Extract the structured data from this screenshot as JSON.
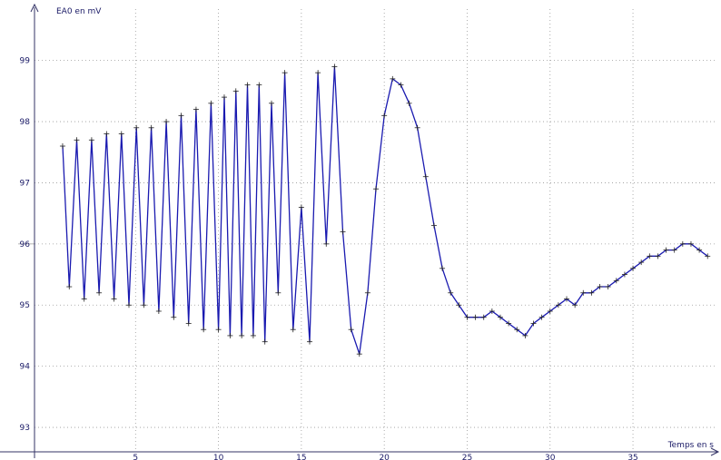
{
  "chart_data": {
    "type": "line",
    "title": "",
    "ylabel": "EA0 en mV",
    "xlabel": "Temps en s",
    "xlim": [
      0,
      40.2
    ],
    "ylim": [
      92.6,
      99.9
    ],
    "x_ticks": [
      5,
      10,
      15,
      20,
      25,
      30,
      35
    ],
    "y_ticks": [
      93,
      94,
      95,
      96,
      97,
      98,
      99
    ],
    "grid": true,
    "legend": "none",
    "colors": {
      "line": "#1a1ab0",
      "marker": "#222222",
      "grid": "#9a9a9a",
      "axis": "#333366",
      "text": "#1a1a66"
    },
    "series": [
      {
        "x": [
          0.6,
          1.0,
          1.45,
          1.9,
          2.35,
          2.8,
          3.25,
          3.7,
          4.15,
          4.6,
          5.05,
          5.5,
          5.95,
          6.4,
          6.85,
          7.3,
          7.75,
          8.2,
          8.65,
          9.1,
          9.55,
          10.0,
          10.35,
          10.7,
          11.05,
          11.4,
          11.75,
          12.1,
          12.45,
          12.8,
          13.2,
          13.6,
          14.0,
          14.5,
          15.0,
          15.5,
          16.0,
          16.5,
          17.0,
          17.5,
          18.0,
          18.5,
          19.0,
          19.5,
          20.0,
          20.5,
          21.0,
          21.5,
          22.0,
          22.5,
          23.0,
          23.5,
          24.0,
          24.5,
          25.0,
          25.5,
          26.0,
          26.5,
          27.0,
          27.5,
          28.0,
          28.5,
          29.0,
          29.5,
          30.0,
          30.5,
          31.0,
          31.5,
          32.0,
          32.5,
          33.0,
          33.5,
          34.0,
          34.5,
          35.0,
          35.5,
          36.0,
          36.5,
          37.0,
          37.5,
          38.0,
          38.5,
          39.0,
          39.5
        ],
        "y": [
          97.6,
          95.3,
          97.7,
          95.1,
          97.7,
          95.2,
          97.8,
          95.1,
          97.8,
          95.0,
          97.9,
          95.0,
          97.9,
          94.9,
          98.0,
          94.8,
          98.1,
          94.7,
          98.2,
          94.6,
          98.3,
          94.6,
          98.4,
          94.5,
          98.5,
          94.5,
          98.6,
          94.5,
          98.6,
          94.4,
          98.3,
          95.2,
          98.8,
          94.6,
          96.6,
          94.4,
          98.8,
          96.0,
          98.9,
          96.2,
          94.6,
          94.2,
          95.2,
          96.9,
          98.1,
          98.7,
          98.6,
          98.3,
          97.9,
          97.1,
          96.3,
          95.6,
          95.2,
          95.0,
          94.8,
          94.8,
          94.8,
          94.9,
          94.8,
          94.7,
          94.6,
          94.5,
          94.7,
          94.8,
          94.9,
          95.0,
          95.1,
          95.0,
          95.2,
          95.2,
          95.3,
          95.3,
          95.4,
          95.5,
          95.6,
          95.7,
          95.8,
          95.8,
          95.9,
          95.9,
          96.0,
          96.0,
          95.9,
          95.8
        ]
      }
    ]
  }
}
